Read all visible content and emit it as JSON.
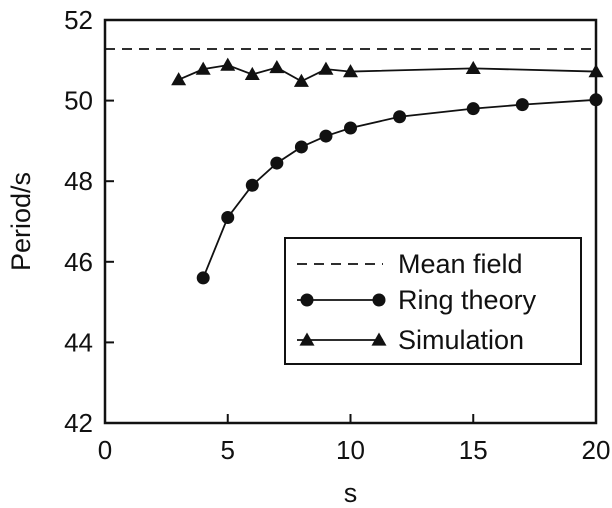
{
  "chart_data": {
    "type": "line",
    "xlabel": "s",
    "ylabel": "Period/s",
    "xlim": [
      0,
      20
    ],
    "ylim": [
      42,
      52
    ],
    "xticks": [
      0,
      5,
      10,
      15,
      20
    ],
    "yticks": [
      42,
      44,
      46,
      48,
      50,
      52
    ],
    "grid": false,
    "legend_position": "lower-right",
    "series": [
      {
        "name": "Mean field",
        "style": "dashed",
        "marker": "none",
        "x": [
          0,
          20
        ],
        "y": [
          51.28,
          51.28
        ]
      },
      {
        "name": "Ring theory",
        "style": "solid",
        "marker": "circle",
        "x": [
          4,
          5,
          6,
          7,
          8,
          9,
          10,
          12,
          15,
          17,
          20
        ],
        "y": [
          45.6,
          47.1,
          47.9,
          48.45,
          48.85,
          49.12,
          49.32,
          49.6,
          49.8,
          49.9,
          50.02
        ]
      },
      {
        "name": "Simulation",
        "style": "solid",
        "marker": "triangle",
        "x": [
          3,
          4,
          5,
          6,
          7,
          8,
          9,
          10,
          15,
          20
        ],
        "y": [
          50.52,
          50.78,
          50.88,
          50.65,
          50.82,
          50.48,
          50.78,
          50.72,
          50.8,
          50.72
        ]
      }
    ]
  }
}
